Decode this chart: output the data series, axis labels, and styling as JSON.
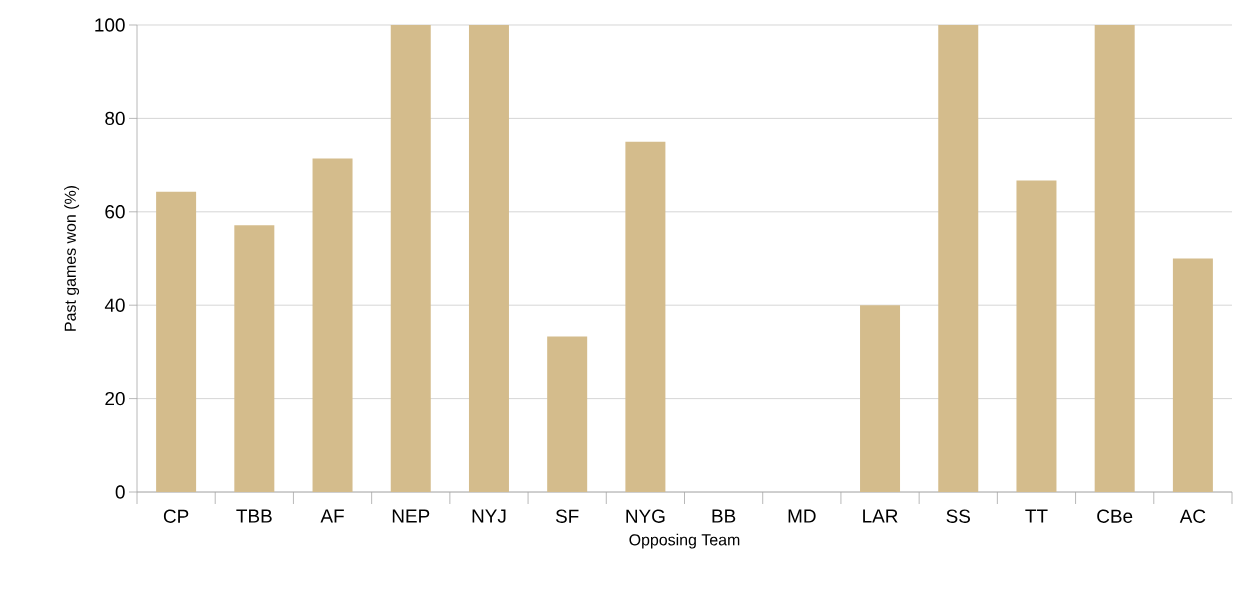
{
  "chart_data": {
    "type": "bar",
    "xlabel": "Opposing Team",
    "ylabel": "Past games won (%)",
    "categories": [
      "CP",
      "TBB",
      "AF",
      "NEP",
      "NYJ",
      "SF",
      "NYG",
      "BB",
      "MD",
      "LAR",
      "SS",
      "TT",
      "CBe",
      "AC"
    ],
    "values": [
      64.3,
      57.1,
      71.4,
      100,
      100,
      33.3,
      75,
      0,
      0,
      40,
      100,
      66.7,
      100,
      50
    ],
    "color": "#d4bc8c",
    "ylim": [
      0,
      100
    ],
    "yticks": [
      0,
      20,
      40,
      60,
      80,
      100
    ],
    "grid": "y"
  }
}
